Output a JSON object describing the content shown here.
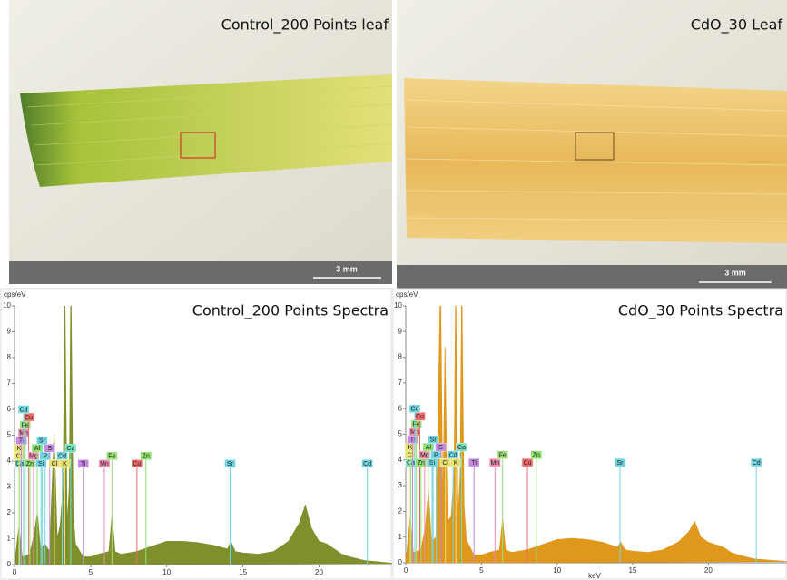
{
  "micrographs": [
    {
      "title": "Control_200 Points leaf",
      "scale": "3 mm"
    },
    {
      "title": "CdO_30 Leaf",
      "scale": "3 mm"
    }
  ],
  "chart_data": [
    {
      "type": "spectrum",
      "title": "Control_200 Points Spectra",
      "y_label": "cps/eV",
      "xlim": [
        0,
        24.8
      ],
      "ylim": [
        0,
        10
      ],
      "xticks": [
        0,
        5,
        10,
        15,
        20
      ],
      "yticks": [
        0,
        1,
        2,
        3,
        4,
        5,
        6,
        7,
        8,
        9,
        10
      ],
      "spectrum": {
        "color": "#7f8f2c",
        "x": [
          0,
          0.3,
          0.5,
          1,
          1.3,
          1.5,
          1.7,
          2,
          2.3,
          2.6,
          2.8,
          3.0,
          3.2,
          3.3,
          3.45,
          3.6,
          3.7,
          3.85,
          4.0,
          4.5,
          5,
          5.5,
          6.2,
          6.4,
          6.6,
          7,
          8,
          9,
          10,
          11,
          12,
          13,
          14,
          14.2,
          14.5,
          15,
          16,
          17,
          18,
          18.7,
          19.1,
          19.5,
          20,
          20.5,
          21,
          21.5,
          22,
          23,
          24,
          24.8
        ],
        "values": [
          0,
          1.5,
          0.3,
          0.4,
          1.2,
          2.0,
          0.6,
          0.8,
          0.5,
          5.0,
          1.0,
          1.5,
          3.0,
          11,
          1.5,
          3,
          11,
          2,
          0.8,
          0.3,
          0.3,
          0.4,
          0.5,
          1.9,
          0.5,
          0.4,
          0.5,
          0.7,
          0.9,
          0.9,
          0.85,
          0.75,
          0.6,
          0.9,
          0.5,
          0.45,
          0.4,
          0.5,
          0.9,
          1.6,
          2.3,
          1.4,
          0.9,
          0.8,
          0.6,
          0.4,
          0.3,
          0.15,
          0.1,
          0.05
        ]
      },
      "elements": [
        {
          "label": "Ca",
          "x": 0.34,
          "color": "#6fe0c0"
        },
        {
          "label": "Cl",
          "x": 0.3,
          "color": "#e8e070"
        },
        {
          "label": "K",
          "x": 0.3,
          "color": "#e8e070"
        },
        {
          "label": "Ti",
          "x": 0.45,
          "color": "#c48ae0"
        },
        {
          "label": "Mn",
          "x": 0.6,
          "color": "#f08ab0"
        },
        {
          "label": "Fe",
          "x": 0.7,
          "color": "#9ce07a"
        },
        {
          "label": "Cu",
          "x": 0.93,
          "color": "#f06a6a"
        },
        {
          "label": "Zn",
          "x": 1.01,
          "color": "#8ee06f"
        },
        {
          "label": "Cd",
          "x": 0.6,
          "color": "#6fd6e0"
        },
        {
          "label": "Mg",
          "x": 1.25,
          "color": "#f08ab0"
        },
        {
          "label": "Al",
          "x": 1.49,
          "color": "#8ee06f"
        },
        {
          "label": "Si",
          "x": 1.74,
          "color": "#6fd6e0"
        },
        {
          "label": "Sr",
          "x": 1.81,
          "color": "#6fd6e0"
        },
        {
          "label": "P",
          "x": 2.01,
          "color": "#6fd6e0"
        },
        {
          "label": "S",
          "x": 2.31,
          "color": "#c48ae0"
        },
        {
          "label": "Cl",
          "x": 2.62,
          "color": "#e8e070"
        },
        {
          "label": "Cd",
          "x": 3.13,
          "color": "#6fd6e0"
        },
        {
          "label": "K",
          "x": 3.31,
          "color": "#e8e070"
        },
        {
          "label": "Ca",
          "x": 3.69,
          "color": "#6fe0c0"
        },
        {
          "label": "Ti",
          "x": 4.51,
          "color": "#c48ae0"
        },
        {
          "label": "Mn",
          "x": 5.9,
          "color": "#f08ab0"
        },
        {
          "label": "Fe",
          "x": 6.4,
          "color": "#9ce07a"
        },
        {
          "label": "Cu",
          "x": 8.04,
          "color": "#f06a6a"
        },
        {
          "label": "Zn",
          "x": 8.63,
          "color": "#8ee06f"
        },
        {
          "label": "Sr",
          "x": 14.16,
          "color": "#6fd6e0"
        },
        {
          "label": "Cd",
          "x": 23.17,
          "color": "#6fd6e0"
        }
      ]
    },
    {
      "type": "spectrum",
      "title": "CdO_30 Points Spectra",
      "y_label": "cps/eV",
      "x_label": "keV",
      "xlim": [
        0,
        25.2
      ],
      "ylim": [
        0,
        10
      ],
      "xticks": [
        0,
        5,
        10,
        15,
        20
      ],
      "yticks": [
        0,
        1,
        2,
        3,
        4,
        5,
        6,
        7,
        8,
        9,
        10
      ],
      "spectrum": {
        "color": "#e0981c",
        "x": [
          0,
          0.3,
          0.5,
          1,
          1.3,
          1.5,
          1.7,
          2,
          2.3,
          2.45,
          2.6,
          2.75,
          3.0,
          3.2,
          3.3,
          3.45,
          3.6,
          3.7,
          3.85,
          4.0,
          4.5,
          5,
          5.5,
          6.2,
          6.4,
          6.6,
          7,
          8,
          9,
          10,
          11,
          12,
          13,
          14,
          14.2,
          14.5,
          15,
          16,
          17,
          18,
          18.7,
          19.1,
          19.5,
          20,
          20.5,
          21,
          21.5,
          22,
          23,
          24,
          25.2
        ],
        "values": [
          0,
          1.8,
          0.4,
          0.5,
          1.4,
          2.8,
          0.8,
          1.0,
          11,
          2.0,
          8.4,
          1.6,
          1.8,
          3.5,
          11,
          1.8,
          3.5,
          11,
          2.2,
          0.9,
          0.3,
          0.3,
          0.4,
          0.5,
          1.7,
          0.5,
          0.4,
          0.5,
          0.7,
          0.9,
          0.95,
          0.9,
          0.8,
          0.6,
          0.8,
          0.5,
          0.45,
          0.4,
          0.5,
          0.8,
          1.2,
          1.6,
          1.0,
          0.8,
          0.7,
          0.6,
          0.4,
          0.3,
          0.15,
          0.1,
          0.05
        ]
      },
      "elements": [
        {
          "label": "Ca",
          "x": 0.34,
          "color": "#6fe0c0"
        },
        {
          "label": "Cl",
          "x": 0.3,
          "color": "#e8e070"
        },
        {
          "label": "K",
          "x": 0.3,
          "color": "#e8e070"
        },
        {
          "label": "Ti",
          "x": 0.45,
          "color": "#c48ae0"
        },
        {
          "label": "Mn",
          "x": 0.6,
          "color": "#f08ab0"
        },
        {
          "label": "Fe",
          "x": 0.7,
          "color": "#9ce07a"
        },
        {
          "label": "Cu",
          "x": 0.93,
          "color": "#f06a6a"
        },
        {
          "label": "Zn",
          "x": 1.01,
          "color": "#8ee06f"
        },
        {
          "label": "Cd",
          "x": 0.6,
          "color": "#6fd6e0"
        },
        {
          "label": "Mg",
          "x": 1.25,
          "color": "#f08ab0"
        },
        {
          "label": "Al",
          "x": 1.49,
          "color": "#8ee06f"
        },
        {
          "label": "Si",
          "x": 1.74,
          "color": "#6fd6e0"
        },
        {
          "label": "Sr",
          "x": 1.81,
          "color": "#6fd6e0"
        },
        {
          "label": "P",
          "x": 2.01,
          "color": "#6fd6e0"
        },
        {
          "label": "S",
          "x": 2.31,
          "color": "#c48ae0"
        },
        {
          "label": "Cl",
          "x": 2.62,
          "color": "#e8e070"
        },
        {
          "label": "Cd",
          "x": 3.13,
          "color": "#6fd6e0"
        },
        {
          "label": "K",
          "x": 3.31,
          "color": "#e8e070"
        },
        {
          "label": "Ca",
          "x": 3.69,
          "color": "#6fe0c0"
        },
        {
          "label": "Ti",
          "x": 4.51,
          "color": "#c48ae0"
        },
        {
          "label": "Mn",
          "x": 5.9,
          "color": "#f08ab0"
        },
        {
          "label": "Fe",
          "x": 6.4,
          "color": "#9ce07a"
        },
        {
          "label": "Cu",
          "x": 8.04,
          "color": "#f06a6a"
        },
        {
          "label": "Zn",
          "x": 8.63,
          "color": "#8ee06f"
        },
        {
          "label": "Sr",
          "x": 14.16,
          "color": "#6fd6e0"
        },
        {
          "label": "Cd",
          "x": 23.17,
          "color": "#6fd6e0"
        }
      ]
    }
  ]
}
